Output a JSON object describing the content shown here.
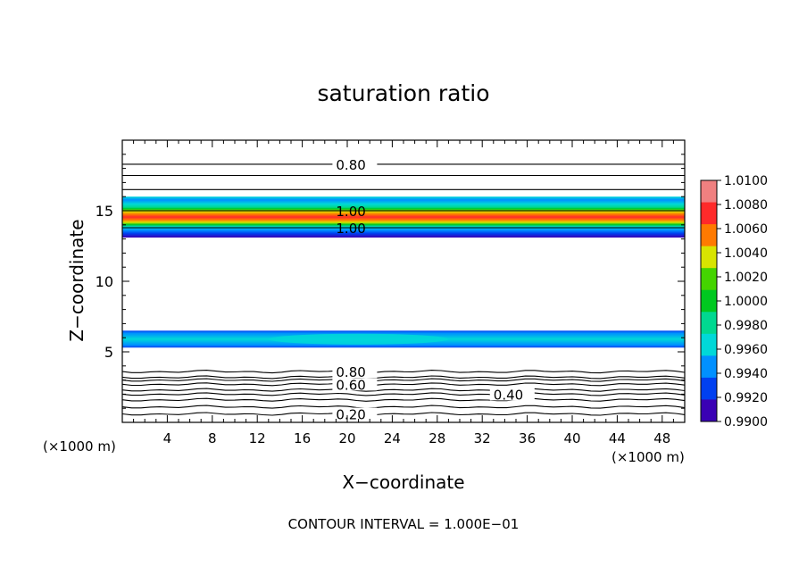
{
  "chart_data": {
    "type": "heatmap",
    "title": "saturation ratio",
    "xlabel": "X−coordinate",
    "ylabel": "Z−coordinate",
    "x_unit_left": "(×1000 m)",
    "x_unit_right": "(×1000 m)",
    "footer": "CONTOUR INTERVAL = 1.000E−01",
    "xlim": [
      0,
      50
    ],
    "ylim": [
      0,
      20
    ],
    "xticks": [
      4,
      8,
      12,
      16,
      20,
      24,
      28,
      32,
      36,
      40,
      44,
      48
    ],
    "yticks": [
      5,
      10,
      15
    ],
    "colorbar": {
      "labels": [
        "1.0100",
        "1.0080",
        "1.0060",
        "1.0040",
        "1.0020",
        "1.0000",
        "0.9980",
        "0.9960",
        "0.9940",
        "0.9920",
        "0.9900"
      ],
      "colors": [
        "#f08080",
        "#ff2a2a",
        "#ff7a00",
        "#d8e400",
        "#44d400",
        "#00c820",
        "#00d890",
        "#00d8d8",
        "#0090ff",
        "#0040f0",
        "#3a00b4"
      ]
    },
    "bands": [
      {
        "z_min": 13.1,
        "z_max": 16.0,
        "kind": "upper"
      },
      {
        "z_min": 5.3,
        "z_max": 6.5,
        "kind": "lower"
      }
    ],
    "contours": [
      {
        "label": "0.80",
        "z": 18.3,
        "label_x": 19
      },
      {
        "label": "1.00",
        "z": 15.0,
        "label_x": 19
      },
      {
        "label": "1.00",
        "z": 13.8,
        "label_x": 19
      },
      {
        "label": "0.80",
        "z": 3.6,
        "label_x": 19
      },
      {
        "label": "0.60",
        "z": 2.7,
        "label_x": 19
      },
      {
        "label": "0.40",
        "z": 2.0,
        "label_x": 33
      },
      {
        "label": "0.20",
        "z": 0.6,
        "label_x": 19
      }
    ],
    "plain_contours": [
      17.5,
      16.5,
      3.2,
      3.0,
      2.3,
      1.6,
      1.1
    ]
  }
}
